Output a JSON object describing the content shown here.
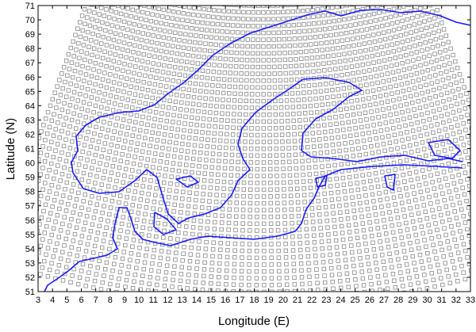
{
  "chart_data": {
    "type": "map",
    "xlabel": "Longitude (E)",
    "ylabel": "Latitude (N)",
    "xlim": [
      3,
      33
    ],
    "ylim": [
      51,
      71
    ],
    "xticks": [
      3,
      4,
      5,
      6,
      7,
      8,
      9,
      10,
      11,
      12,
      13,
      14,
      15,
      16,
      17,
      18,
      19,
      20,
      21,
      22,
      23,
      24,
      25,
      26,
      27,
      28,
      29,
      30,
      31,
      32,
      33
    ],
    "yticks": [
      51,
      52,
      53,
      54,
      55,
      56,
      57,
      58,
      59,
      60,
      61,
      62,
      63,
      64,
      65,
      66,
      67,
      68,
      69,
      70,
      71
    ],
    "color": "#1a1aff"
  }
}
